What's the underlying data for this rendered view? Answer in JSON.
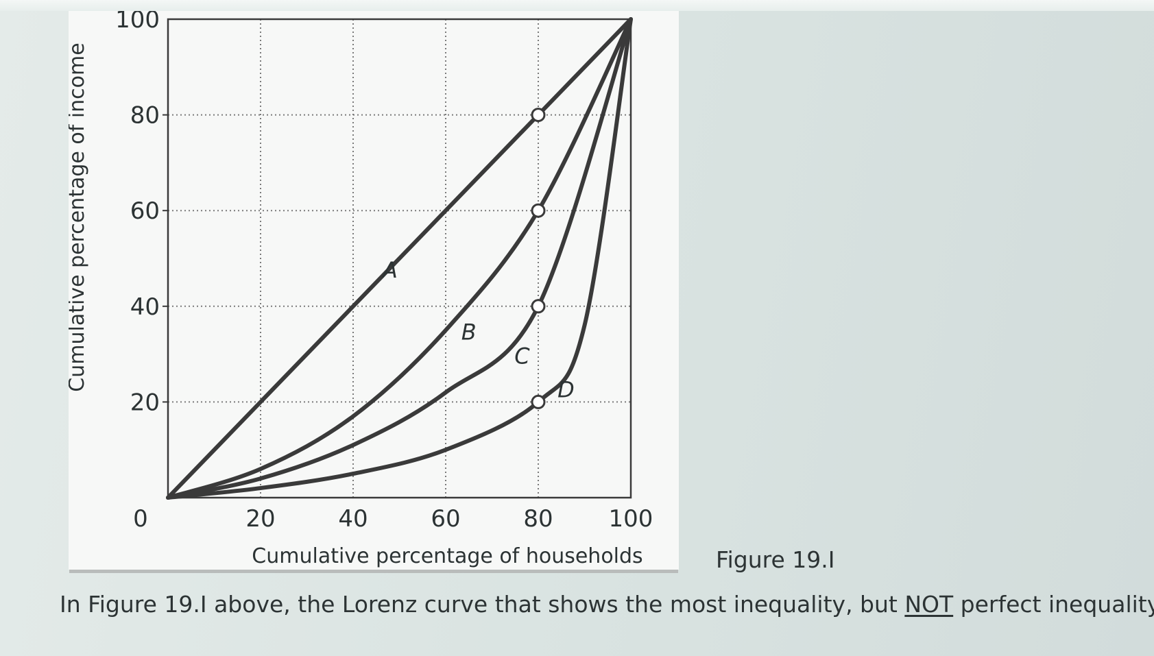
{
  "chart_data": {
    "type": "line",
    "title": "",
    "xlabel": "Cumulative percentage of households",
    "ylabel": "Cumulative percentage of income",
    "xlim": [
      0,
      100
    ],
    "ylim": [
      0,
      100
    ],
    "x_ticks": [
      "0",
      "20",
      "40",
      "60",
      "80",
      "100"
    ],
    "y_ticks": [
      "20",
      "40",
      "60",
      "80",
      "100"
    ],
    "grid": "dotted",
    "series": [
      {
        "name": "A",
        "x": [
          0,
          20,
          40,
          60,
          80,
          100
        ],
        "y": [
          0,
          20,
          40,
          60,
          80,
          100
        ]
      },
      {
        "name": "B",
        "x": [
          0,
          20,
          40,
          60,
          80,
          100
        ],
        "y": [
          0,
          6,
          17,
          35,
          60,
          100
        ]
      },
      {
        "name": "C",
        "x": [
          0,
          20,
          40,
          60,
          80,
          100
        ],
        "y": [
          0,
          4,
          11,
          22,
          40,
          100
        ]
      },
      {
        "name": "D",
        "x": [
          0,
          20,
          40,
          60,
          80,
          90,
          100
        ],
        "y": [
          0,
          2,
          5,
          10,
          20,
          36,
          100
        ]
      }
    ],
    "highlighted_points": [
      {
        "x": 80,
        "y": 80
      },
      {
        "x": 80,
        "y": 60
      },
      {
        "x": 80,
        "y": 40
      },
      {
        "x": 80,
        "y": 20
      }
    ]
  },
  "caption": "Figure 19.I",
  "question": {
    "before": "In Figure 19.I above, the Lorenz curve that shows the most inequality, but ",
    "emphasis": "NOT",
    "after": " perfect inequality, is"
  },
  "colors": {
    "curve": "#3a3a3a",
    "grid": "#7a7a7a",
    "text": "#2c3334",
    "panel": "#f7f8f7"
  }
}
